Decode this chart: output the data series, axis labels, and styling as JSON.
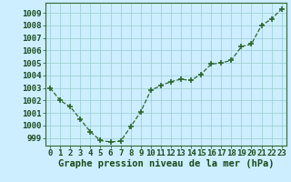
{
  "x": [
    0,
    1,
    2,
    3,
    4,
    5,
    6,
    7,
    8,
    9,
    10,
    11,
    12,
    13,
    14,
    15,
    16,
    17,
    18,
    19,
    20,
    21,
    22,
    23
  ],
  "y": [
    1003.0,
    1002.0,
    1001.5,
    1000.5,
    999.5,
    998.8,
    998.7,
    998.75,
    999.9,
    1001.1,
    1002.8,
    1003.2,
    1003.5,
    1003.7,
    1003.6,
    1004.1,
    1004.9,
    1005.0,
    1005.2,
    1006.3,
    1006.5,
    1008.0,
    1008.5,
    1009.3
  ],
  "line_color": "#2d662d",
  "marker_color": "#2d662d",
  "bg_color": "#cceeff",
  "grid_color": "#99cccc",
  "ylabel_ticks": [
    999,
    1000,
    1001,
    1002,
    1003,
    1004,
    1005,
    1006,
    1007,
    1008,
    1009
  ],
  "xlabel": "Graphe pression niveau de la mer (hPa)",
  "xlim": [
    -0.5,
    23.5
  ],
  "ylim": [
    998.4,
    1009.8
  ],
  "xtick_labels": [
    "0",
    "1",
    "2",
    "3",
    "4",
    "5",
    "6",
    "7",
    "8",
    "9",
    "10",
    "11",
    "12",
    "13",
    "14",
    "15",
    "16",
    "17",
    "18",
    "19",
    "20",
    "21",
    "22",
    "23"
  ],
  "tick_fontsize": 6.5,
  "xlabel_fontsize": 7.5
}
